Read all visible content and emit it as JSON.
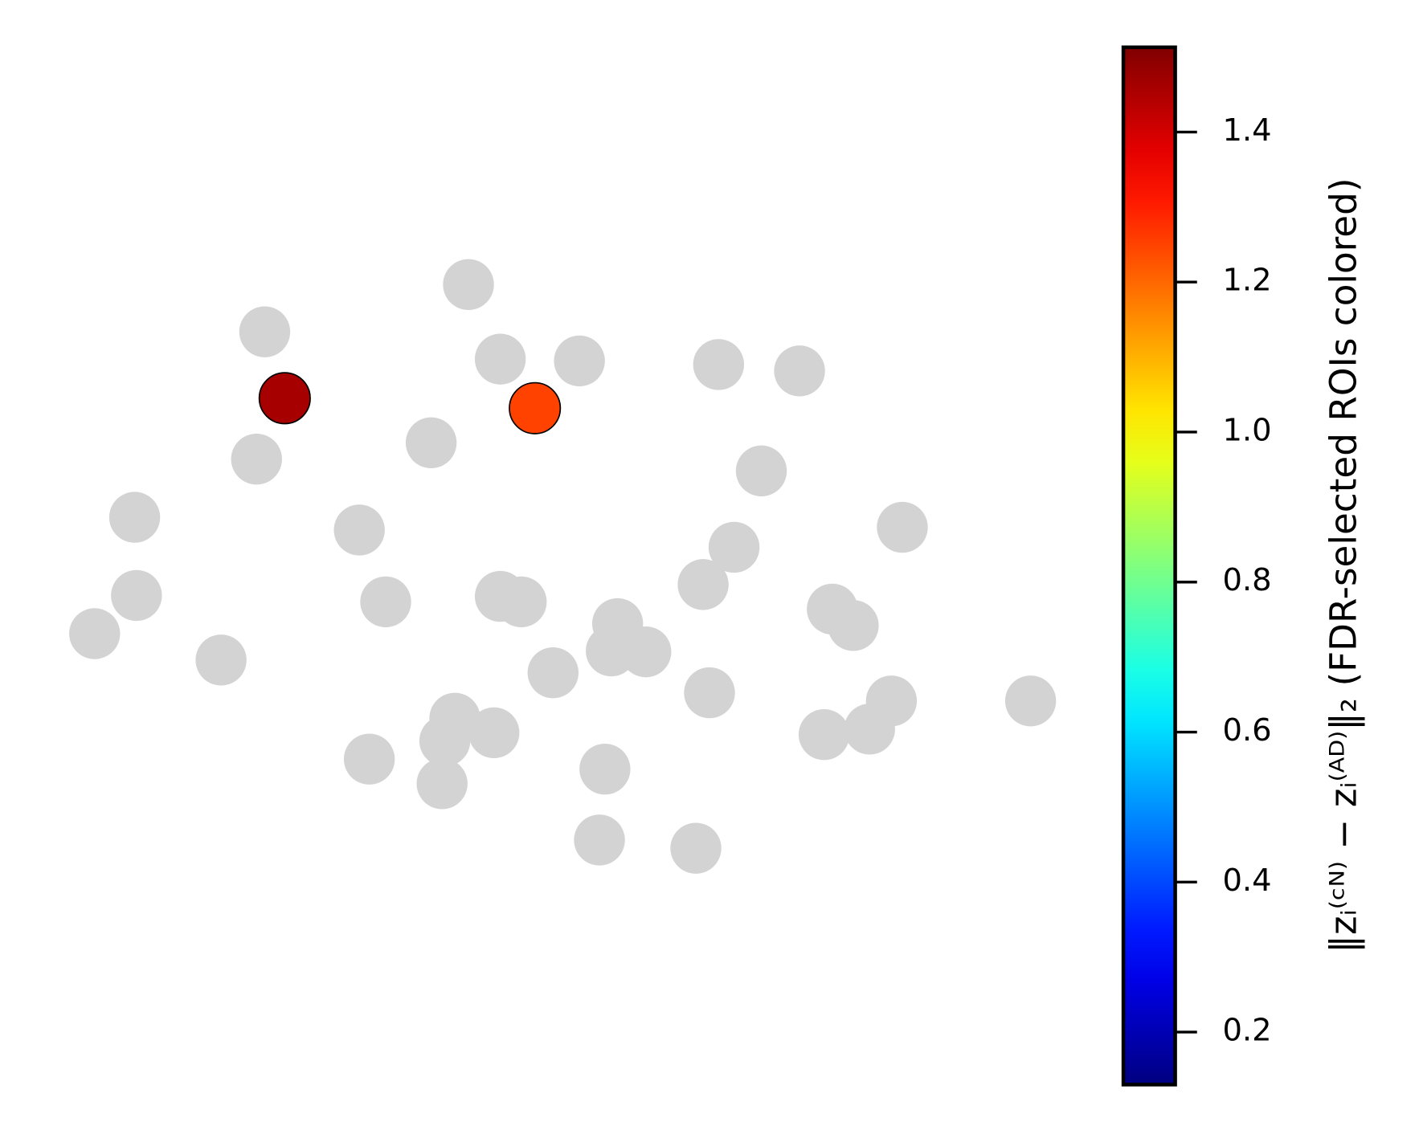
{
  "chart_data": {
    "type": "scatter",
    "x": [
      515,
      291,
      550,
      637,
      790,
      879,
      313,
      588,
      474,
      282,
      837,
      148,
      395,
      992,
      807,
      150,
      424,
      550,
      573,
      773,
      104,
      243,
      679,
      915,
      938,
      672,
      710,
      608,
      780,
      500,
      543,
      980,
      1133,
      489,
      406,
      906,
      956,
      665,
      486,
      659,
      765
    ],
    "y": [
      927,
      875,
      845,
      843,
      839,
      832,
      802,
      791,
      753,
      735,
      722,
      671,
      657,
      660,
      638,
      585,
      578,
      584,
      578,
      597,
      543,
      514,
      554,
      570,
      552,
      524,
      523,
      500,
      478,
      450,
      434,
      469,
      469,
      425,
      405,
      432,
      438,
      394,
      378,
      316,
      307
    ],
    "values": [
      null,
      null,
      null,
      null,
      null,
      null,
      1.46,
      1.25,
      null,
      null,
      null,
      null,
      null,
      null,
      null,
      null,
      null,
      null,
      null,
      null,
      null,
      null,
      null,
      null,
      null,
      null,
      null,
      null,
      null,
      null,
      null,
      null,
      null,
      null,
      null,
      null,
      null,
      null,
      null,
      null,
      null
    ],
    "xlim": [
      0,
      1560
    ],
    "ylim": [
      0,
      1240
    ],
    "na_color": "#d3d3d3",
    "colormap": "jet",
    "colorbar": {
      "label": "‖zᵢ⁽ᶜᴺ⁾ − zᵢ⁽ᴬᴰ⁾‖₂ (FDR-selected ROIs colored)",
      "lim": [
        0.13,
        1.513
      ],
      "ticks": [
        0.2,
        0.4,
        0.6,
        0.8,
        {
          "value": 1,
          "label": "1.0"
        },
        1.2,
        1.4
      ]
    }
  }
}
